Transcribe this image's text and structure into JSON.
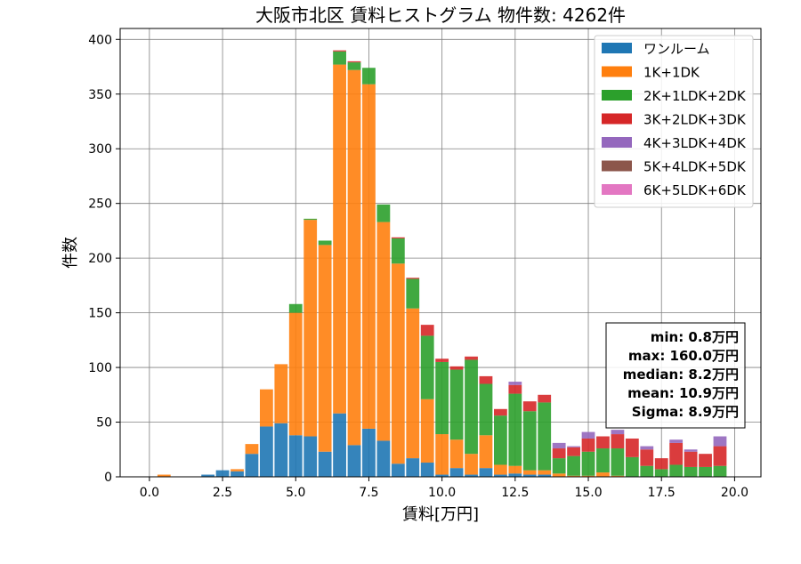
{
  "chart_data": {
    "type": "bar",
    "stacked": true,
    "title": "大阪市北区 賃料ヒストグラム 物件数: 4262件",
    "xlabel": "賃料[万円]",
    "ylabel": "件数",
    "xlim": [
      -1.0,
      20.9
    ],
    "ylim": [
      0,
      410
    ],
    "xticks": [
      0.0,
      2.5,
      5.0,
      7.5,
      10.0,
      12.5,
      15.0,
      17.5,
      20.0
    ],
    "xtick_labels": [
      "0.0",
      "2.5",
      "5.0",
      "7.5",
      "10.0",
      "12.5",
      "15.0",
      "17.5",
      "20.0"
    ],
    "yticks": [
      0,
      50,
      100,
      150,
      200,
      250,
      300,
      350,
      400
    ],
    "ytick_labels": [
      "0",
      "50",
      "100",
      "150",
      "200",
      "250",
      "300",
      "350",
      "400"
    ],
    "grid": true,
    "legend_position": "top-right",
    "bin_width": 0.5,
    "x": [
      0.5,
      1.0,
      1.5,
      2.0,
      2.5,
      3.0,
      3.5,
      4.0,
      4.5,
      5.0,
      5.5,
      6.0,
      6.5,
      7.0,
      7.5,
      8.0,
      8.5,
      9.0,
      9.5,
      10.0,
      10.5,
      11.0,
      11.5,
      12.0,
      12.5,
      13.0,
      13.5,
      14.0,
      14.5,
      15.0,
      15.5,
      16.0,
      16.5,
      17.0,
      17.5,
      18.0,
      18.5,
      19.0,
      19.5
    ],
    "series": [
      {
        "name": "ワンルーム",
        "color": "#1f77b4",
        "values": [
          0,
          0,
          0,
          2,
          6,
          5,
          21,
          46,
          49,
          38,
          37,
          23,
          58,
          29,
          44,
          33,
          12,
          17,
          13,
          2,
          8,
          2,
          8,
          2,
          3,
          2,
          2,
          0,
          0,
          0,
          0,
          0,
          0,
          0,
          0,
          0,
          0,
          0,
          0
        ]
      },
      {
        "name": "1K+1DK",
        "color": "#ff7f0e",
        "values": [
          2,
          0,
          0,
          0,
          0,
          2,
          9,
          34,
          54,
          112,
          198,
          189,
          319,
          343,
          315,
          200,
          183,
          137,
          58,
          37,
          26,
          19,
          30,
          9,
          7,
          4,
          4,
          3,
          1,
          1,
          4,
          1,
          0,
          0,
          0,
          0,
          0,
          0,
          0
        ]
      },
      {
        "name": "2K+1LDK+2DK",
        "color": "#2ca02c",
        "values": [
          0,
          0,
          0,
          0,
          0,
          0,
          0,
          0,
          0,
          8,
          1,
          4,
          12,
          7,
          15,
          16,
          23,
          27,
          58,
          66,
          64,
          86,
          47,
          45,
          66,
          54,
          62,
          14,
          18,
          22,
          22,
          25,
          18,
          10,
          7,
          11,
          9,
          9,
          10
        ]
      },
      {
        "name": "3K+2LDK+3DK",
        "color": "#d62728",
        "values": [
          0,
          0,
          0,
          0,
          0,
          0,
          0,
          0,
          0,
          0,
          0,
          0,
          1,
          1,
          0,
          0,
          1,
          1,
          10,
          3,
          3,
          3,
          7,
          6,
          8,
          9,
          7,
          9,
          8,
          12,
          11,
          13,
          17,
          15,
          10,
          20,
          14,
          12,
          18
        ]
      },
      {
        "name": "4K+3LDK+4DK",
        "color": "#9467bd",
        "values": [
          0,
          0,
          0,
          0,
          0,
          0,
          0,
          0,
          0,
          0,
          0,
          0,
          0,
          0,
          0,
          0,
          0,
          0,
          0,
          0,
          0,
          0,
          0,
          0,
          3,
          0,
          0,
          5,
          1,
          6,
          0,
          4,
          0,
          3,
          0,
          3,
          2,
          0,
          9
        ]
      },
      {
        "name": "5K+4LDK+5DK",
        "color": "#8c564b",
        "values": [
          0,
          0,
          0,
          0,
          0,
          0,
          0,
          0,
          0,
          0,
          0,
          0,
          0,
          0,
          0,
          0,
          0,
          0,
          0,
          0,
          0,
          0,
          0,
          0,
          0,
          0,
          0,
          0,
          0,
          0,
          0,
          0,
          0,
          0,
          0,
          0,
          0,
          0,
          0
        ]
      },
      {
        "name": "6K+5LDK+6DK",
        "color": "#e377c2",
        "values": [
          0,
          0,
          0,
          0,
          0,
          0,
          0,
          0,
          0,
          0,
          0,
          0,
          0,
          0,
          0,
          0,
          0,
          0,
          0,
          0,
          0,
          0,
          0,
          0,
          0,
          0,
          0,
          0,
          0,
          0,
          0,
          0,
          0,
          0,
          0,
          0,
          0,
          0,
          0
        ]
      }
    ],
    "stats_box": {
      "lines": [
        "min: 0.8万円",
        "max: 160.0万円",
        "median: 8.2万円",
        "mean: 10.9万円",
        "Sigma: 8.9万円"
      ]
    }
  }
}
